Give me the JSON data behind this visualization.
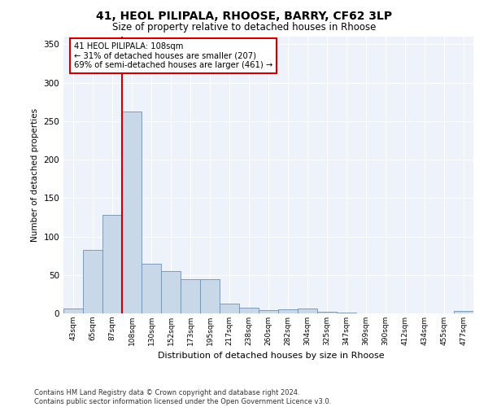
{
  "title_line1": "41, HEOL PILIPALA, RHOOSE, BARRY, CF62 3LP",
  "title_line2": "Size of property relative to detached houses in Rhoose",
  "xlabel": "Distribution of detached houses by size in Rhoose",
  "ylabel": "Number of detached properties",
  "bar_color": "#c8d8e8",
  "bar_edge_color": "#7090b0",
  "background_color": "#eef2fa",
  "grid_color": "#ffffff",
  "property_line_color": "#cc0000",
  "annotation_text": "41 HEOL PILIPALA: 108sqm\n← 31% of detached houses are smaller (207)\n69% of semi-detached houses are larger (461) →",
  "annotation_box_edgecolor": "#cc0000",
  "categories": [
    "43sqm",
    "65sqm",
    "87sqm",
    "108sqm",
    "130sqm",
    "152sqm",
    "173sqm",
    "195sqm",
    "217sqm",
    "238sqm",
    "260sqm",
    "282sqm",
    "304sqm",
    "325sqm",
    "347sqm",
    "369sqm",
    "390sqm",
    "412sqm",
    "434sqm",
    "455sqm",
    "477sqm"
  ],
  "values": [
    6,
    83,
    128,
    263,
    65,
    55,
    45,
    45,
    13,
    7,
    4,
    5,
    6,
    2,
    1,
    0,
    0,
    0,
    0,
    0,
    3
  ],
  "ylim": [
    0,
    360
  ],
  "yticks": [
    0,
    50,
    100,
    150,
    200,
    250,
    300,
    350
  ],
  "footer_text": "Contains HM Land Registry data © Crown copyright and database right 2024.\nContains public sector information licensed under the Open Government Licence v3.0.",
  "property_bar_index": 3
}
